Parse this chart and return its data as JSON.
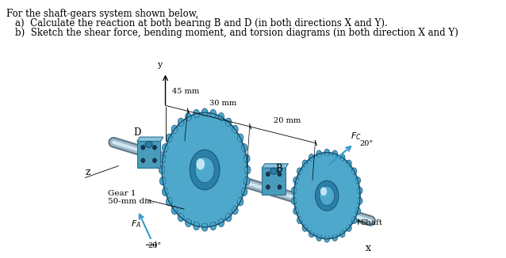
{
  "title_line": "For the shaft-gears system shown below,",
  "item_a": "a)  Calculate the reaction at both bearing B and D (in both directions X and Y).",
  "item_b": "b)  Sketch the shear force, bending moment, and torsion diagrams (in both direction X and Y)",
  "bg_color": "#f5f5f0",
  "text_color": "#000000",
  "label_45mm": "45 mm",
  "label_30mm": "30 mm",
  "label_20mm": "20 mm",
  "label_D": "D",
  "label_B": "B",
  "label_Y": "y",
  "label_Z": "z",
  "label_X": "x",
  "label_gear1": "Gear 1",
  "label_50mm": "50-mm dia.",
  "label_FA": "$F_A$",
  "label_Fc": "$F_C$",
  "label_20deg_bottom": "20°",
  "label_20deg_right": "20°",
  "label_shaft": "Shaft",
  "gear_blue_light": "#7ec8e3",
  "gear_blue_mid": "#4da8cc",
  "gear_blue_dark": "#2a7fa8",
  "gear_blue_vdark": "#1a5070",
  "shaft_gray": "#a0b8c8",
  "shaft_dark": "#607888",
  "bear_light": "#8ac4dc",
  "bear_mid": "#4a9cbd",
  "bear_dark": "#2a7090"
}
